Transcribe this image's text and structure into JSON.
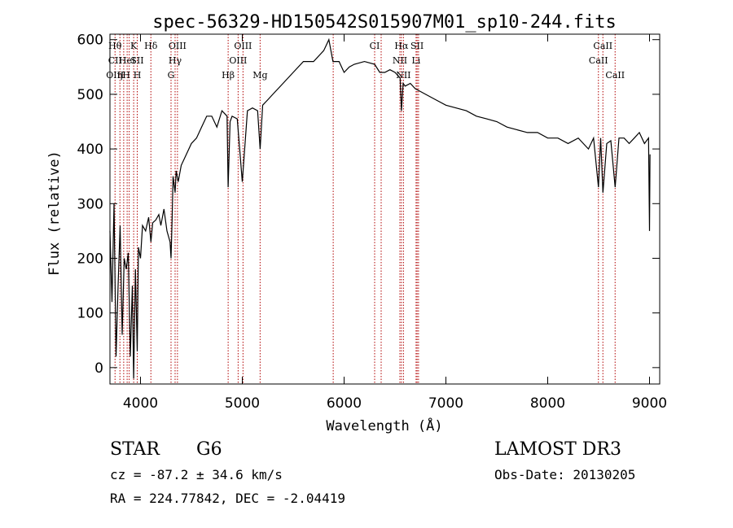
{
  "chart_data": {
    "type": "line",
    "title": "spec-56329-HD150542S015907M01_sp10-244.fits",
    "xlabel": "Wavelength (Å)",
    "ylabel": "Flux (relative)",
    "xlim": [
      3700,
      9100
    ],
    "ylim": [
      -30,
      610
    ],
    "x_ticks": [
      4000,
      5000,
      6000,
      7000,
      8000,
      9000
    ],
    "x_tick_labels": [
      "4000",
      "5000",
      "6000",
      "7000",
      "8000",
      "9000"
    ],
    "y_ticks": [
      0,
      100,
      200,
      300,
      400,
      500,
      600
    ],
    "y_tick_labels": [
      "0",
      "100",
      "200",
      "300",
      "400",
      "500",
      "600"
    ],
    "spectrum": {
      "x": [
        3700,
        3720,
        3740,
        3760,
        3780,
        3800,
        3820,
        3840,
        3860,
        3880,
        3900,
        3920,
        3933,
        3950,
        3968,
        3980,
        4000,
        4020,
        4050,
        4080,
        4102,
        4120,
        4150,
        4180,
        4200,
        4230,
        4260,
        4290,
        4300,
        4310,
        4320,
        4340,
        4350,
        4370,
        4400,
        4450,
        4500,
        4550,
        4600,
        4650,
        4700,
        4750,
        4800,
        4850,
        4861,
        4880,
        4900,
        4950,
        5000,
        5050,
        5100,
        5150,
        5175,
        5200,
        5250,
        5300,
        5400,
        5500,
        5600,
        5700,
        5800,
        5850,
        5890,
        5950,
        6000,
        6050,
        6100,
        6200,
        6300,
        6350,
        6400,
        6450,
        6500,
        6550,
        6563,
        6580,
        6600,
        6650,
        6700,
        6750,
        6800,
        6900,
        7000,
        7100,
        7200,
        7300,
        7400,
        7500,
        7600,
        7700,
        7800,
        7900,
        8000,
        8100,
        8200,
        8300,
        8400,
        8450,
        8498,
        8520,
        8542,
        8580,
        8620,
        8662,
        8700,
        8750,
        8800,
        8850,
        8900,
        8950,
        8990,
        9000,
        9005
      ],
      "y": [
        250,
        120,
        300,
        20,
        150,
        260,
        60,
        200,
        180,
        210,
        20,
        150,
        -20,
        180,
        30,
        220,
        200,
        260,
        250,
        275,
        230,
        265,
        270,
        280,
        260,
        290,
        250,
        230,
        200,
        270,
        350,
        320,
        360,
        340,
        370,
        390,
        410,
        420,
        440,
        460,
        460,
        440,
        470,
        460,
        330,
        450,
        460,
        455,
        340,
        470,
        475,
        470,
        400,
        480,
        490,
        500,
        520,
        540,
        560,
        560,
        580,
        600,
        560,
        560,
        540,
        550,
        555,
        560,
        555,
        540,
        540,
        545,
        540,
        530,
        470,
        520,
        515,
        520,
        510,
        505,
        500,
        490,
        480,
        475,
        470,
        460,
        455,
        450,
        440,
        435,
        430,
        430,
        420,
        420,
        410,
        420,
        400,
        420,
        330,
        420,
        320,
        410,
        415,
        330,
        420,
        420,
        410,
        420,
        430,
        410,
        420,
        250,
        390
      ],
      "color": "#000000"
    },
    "lines": [
      {
        "x": 3750,
        "labels": [
          "Hθ",
          "CII",
          "OIII"
        ],
        "rows": [
          0,
          1,
          2
        ]
      },
      {
        "x": 3798,
        "labels": [],
        "rows": []
      },
      {
        "x": 3835,
        "labels": [
          "ηH"
        ],
        "rows": [
          2
        ]
      },
      {
        "x": 3869,
        "labels": [
          "HeI"
        ],
        "rows": [
          1
        ]
      },
      {
        "x": 3889,
        "labels": [],
        "rows": []
      },
      {
        "x": 3933,
        "labels": [
          "K"
        ],
        "rows": [
          0
        ]
      },
      {
        "x": 3968,
        "labels": [
          "SII",
          "H"
        ],
        "rows": [
          1,
          2
        ]
      },
      {
        "x": 4102,
        "labels": [
          "Hδ"
        ],
        "rows": [
          0
        ]
      },
      {
        "x": 4300,
        "labels": [
          "G"
        ],
        "rows": [
          2
        ]
      },
      {
        "x": 4340,
        "labels": [
          "Hγ"
        ],
        "rows": [
          1
        ]
      },
      {
        "x": 4363,
        "labels": [
          "OIII"
        ],
        "rows": [
          0
        ]
      },
      {
        "x": 4861,
        "labels": [
          "Hβ"
        ],
        "rows": [
          2
        ]
      },
      {
        "x": 4959,
        "labels": [
          "OIII"
        ],
        "rows": [
          1
        ]
      },
      {
        "x": 5007,
        "labels": [
          "OIII"
        ],
        "rows": [
          0
        ]
      },
      {
        "x": 5175,
        "labels": [
          "Mg"
        ],
        "rows": [
          2
        ]
      },
      {
        "x": 5893,
        "labels": [],
        "rows": []
      },
      {
        "x": 6300,
        "labels": [
          "CI"
        ],
        "rows": [
          0
        ]
      },
      {
        "x": 6364,
        "labels": [],
        "rows": []
      },
      {
        "x": 6548,
        "labels": [
          "NII"
        ],
        "rows": [
          1
        ]
      },
      {
        "x": 6563,
        "labels": [
          "Hα"
        ],
        "rows": [
          0
        ]
      },
      {
        "x": 6583,
        "labels": [
          "NII"
        ],
        "rows": [
          2
        ]
      },
      {
        "x": 6707,
        "labels": [
          "Li"
        ],
        "rows": [
          1
        ]
      },
      {
        "x": 6717,
        "labels": [
          "SII"
        ],
        "rows": [
          0
        ]
      },
      {
        "x": 6731,
        "labels": [],
        "rows": []
      },
      {
        "x": 8498,
        "labels": [
          "CaII"
        ],
        "rows": [
          1
        ]
      },
      {
        "x": 8542,
        "labels": [
          "CaII"
        ],
        "rows": [
          0
        ]
      },
      {
        "x": 8662,
        "labels": [
          "CaII"
        ],
        "rows": [
          2
        ]
      }
    ],
    "grid": false,
    "line_marker_color": "#b00000"
  },
  "info": {
    "object_class": "STAR",
    "subclass": "G6",
    "survey": "LAMOST DR3",
    "cz": "cz = -87.2 ± 34.6 km/s",
    "obs_date": "Obs-Date: 20130205",
    "coords": "RA = 224.77842, DEC =  -2.04419"
  }
}
